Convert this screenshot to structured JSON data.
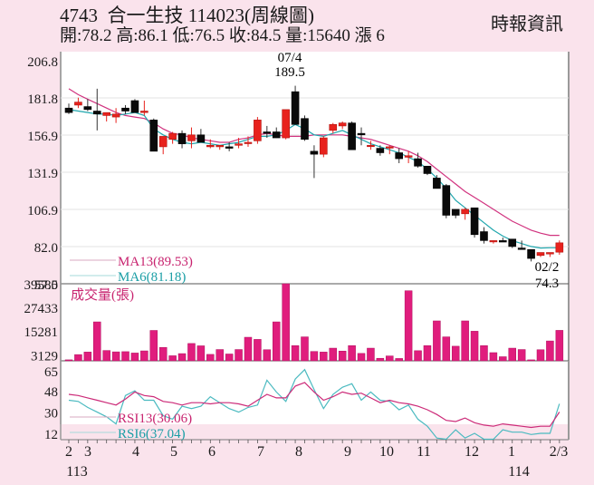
{
  "header": {
    "title": "4743  合一生技 114023(周線圖)",
    "ohlc_line": "開:78.2 高:86.1 低:76.5 收:84.5 量:15640 漲 6",
    "brand": "時報資訊"
  },
  "colors": {
    "background": "#fae3ec",
    "up_candle": "#e8221d",
    "down_candle": "#0a0a0a",
    "ma13": "#d1337f",
    "ma6": "#1fa6ad",
    "volume_bar": "#e01d7d",
    "rsi13": "#cc2a78",
    "rsi6": "#4bbac0"
  },
  "legend": {
    "ma13": "MA13(89.53)",
    "ma6": "MA6(81.18)",
    "volume": "成交量(張)",
    "rsi13": "RSI13(30.06)",
    "rsi6": "RSI6(37.04)"
  },
  "annotations": {
    "high_date": "07/4",
    "high_value": "189.5",
    "low_date": "02/2",
    "low_value": "74.3"
  },
  "chart_data": [
    {
      "type": "candlestick",
      "title": "4743 合一生技 周線圖",
      "y_ticks": [
        206.8,
        181.8,
        156.9,
        131.9,
        106.9,
        82.0,
        57.0
      ],
      "ylim": [
        57.0,
        206.8
      ],
      "x_tick_labels": [
        "2",
        "3",
        "4",
        "5",
        "6",
        "7",
        "8",
        "9",
        "10",
        "11",
        "12",
        "1",
        "2/3"
      ],
      "x_year_labels": [
        "113",
        "114"
      ],
      "ohlc": [
        [
          175,
          178,
          171,
          172
        ],
        [
          177,
          182,
          175,
          179
        ],
        [
          176,
          181,
          173,
          174
        ],
        [
          173,
          188,
          160,
          171
        ],
        [
          170,
          172,
          166,
          172
        ],
        [
          169,
          175,
          165,
          171
        ],
        [
          175,
          177,
          171,
          173
        ],
        [
          180,
          181,
          172,
          172
        ],
        [
          172,
          180,
          170,
          173
        ],
        [
          167,
          168,
          146,
          146
        ],
        [
          149,
          155,
          144,
          156
        ],
        [
          154,
          159,
          151,
          158
        ],
        [
          158,
          160,
          148,
          151
        ],
        [
          153,
          162,
          148,
          157
        ],
        [
          157,
          161,
          152,
          152
        ],
        [
          149,
          154,
          148,
          150
        ],
        [
          149,
          150,
          147,
          150
        ],
        [
          149,
          152,
          146,
          148
        ],
        [
          150,
          155,
          148,
          151
        ],
        [
          152,
          156,
          149,
          152
        ],
        [
          153,
          169,
          151,
          167
        ],
        [
          159,
          163,
          155,
          158
        ],
        [
          159,
          162,
          155,
          155
        ],
        [
          155,
          173,
          154,
          174
        ],
        [
          186,
          190,
          165,
          164
        ],
        [
          168,
          170,
          153,
          154
        ],
        [
          146,
          150,
          128,
          144
        ],
        [
          144,
          156,
          142,
          155
        ],
        [
          160,
          165,
          158,
          164
        ],
        [
          163,
          166,
          161,
          165
        ],
        [
          165,
          166,
          147,
          147
        ],
        [
          158,
          162,
          150,
          157
        ],
        [
          150,
          153,
          147,
          150
        ],
        [
          148,
          150,
          143,
          145
        ],
        [
          149,
          150,
          144,
          149
        ],
        [
          145,
          148,
          138,
          141
        ],
        [
          142,
          146,
          138,
          143
        ],
        [
          141,
          145,
          135,
          136
        ],
        [
          136,
          136,
          130,
          131
        ],
        [
          128,
          130,
          121,
          121
        ],
        [
          123,
          124,
          101,
          103
        ],
        [
          107,
          107,
          101,
          103
        ],
        [
          104,
          108,
          100,
          107
        ],
        [
          108,
          108,
          88,
          90
        ],
        [
          92,
          95,
          84,
          86
        ],
        [
          86,
          86,
          84,
          86
        ],
        [
          86,
          88,
          85,
          85
        ],
        [
          87,
          87,
          81,
          82
        ],
        [
          81,
          86,
          81,
          80
        ],
        [
          80,
          80,
          72,
          74
        ],
        [
          76,
          78,
          75,
          78
        ],
        [
          77,
          78,
          75,
          78
        ],
        [
          78.2,
          86.1,
          76.5,
          84.5
        ]
      ],
      "ma13": [
        188,
        184,
        181,
        178,
        175,
        172,
        170,
        169,
        168,
        165,
        161,
        158,
        157,
        155,
        154,
        153,
        152,
        152,
        154,
        155,
        157,
        158,
        157,
        156,
        156,
        156,
        157,
        157,
        157,
        157,
        156,
        155,
        154,
        152,
        150,
        148,
        146,
        143,
        139,
        134,
        129,
        124,
        119,
        115,
        111,
        107,
        103,
        99,
        96,
        93,
        91,
        89.53,
        89.53
      ],
      "ma6": [
        174,
        173,
        172,
        171,
        171,
        170,
        171,
        172,
        170,
        161,
        157,
        154,
        152,
        151,
        152,
        151,
        150,
        151,
        152,
        154,
        156,
        156,
        157,
        160,
        164,
        161,
        157,
        156,
        158,
        160,
        157,
        154,
        151,
        149,
        147,
        145,
        142,
        139,
        134,
        128,
        121,
        113,
        108,
        103,
        98,
        93,
        89,
        86,
        84,
        82,
        81,
        81.18,
        81.18
      ],
      "volume_ticks": [
        39585,
        27433,
        15281,
        3129
      ],
      "volume": [
        500,
        3200,
        4500,
        20000,
        5300,
        4600,
        4700,
        4000,
        5100,
        15600,
        6900,
        2600,
        3700,
        8900,
        7700,
        3300,
        5800,
        3500,
        5800,
        12100,
        11000,
        5700,
        20000,
        39585,
        7800,
        12300,
        4800,
        4500,
        6500,
        5000,
        7800,
        3800,
        6500,
        1300,
        2500,
        1200,
        36000,
        5200,
        7800,
        20500,
        12300,
        7500,
        20500,
        15200,
        7800,
        4200,
        2100,
        6500,
        5800,
        500,
        5700,
        10200,
        15640
      ],
      "rsi_ticks": [
        65,
        48,
        30,
        12
      ],
      "rsi13": [
        45,
        44,
        42,
        40,
        38,
        36,
        41,
        47,
        44,
        43,
        39,
        38,
        36,
        38,
        38,
        37,
        38,
        38,
        37,
        35,
        40,
        45,
        42,
        42,
        52,
        55,
        47,
        40,
        43,
        47,
        45,
        46,
        42,
        38,
        40,
        38,
        37,
        35,
        32,
        28,
        23,
        22,
        25,
        21,
        19,
        18,
        20,
        19,
        18,
        17,
        18,
        18,
        30.06
      ],
      "rsi6": [
        40,
        39,
        34,
        30,
        26,
        20,
        44,
        48,
        40,
        40,
        27,
        24,
        35,
        33,
        35,
        43,
        38,
        33,
        30,
        34,
        36,
        57,
        47,
        39,
        58,
        66,
        49,
        33,
        45,
        51,
        54,
        40,
        47,
        40,
        39,
        32,
        36,
        24,
        18,
        8,
        7,
        15,
        8,
        12,
        7,
        7,
        15,
        13,
        13,
        11,
        12,
        12,
        37.04
      ]
    }
  ]
}
